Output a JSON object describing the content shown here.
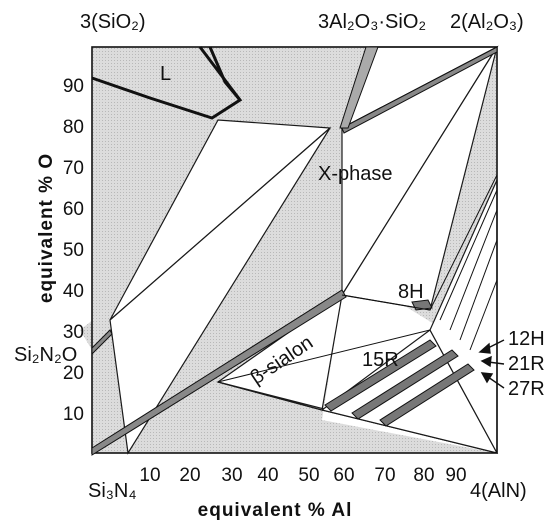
{
  "corners": {
    "top_left": "3(SiO₂)",
    "top_middle": "3Al₂O₃·SiO₂",
    "top_right": "2(Al₂O₃)",
    "bottom_left": "Si₃N₄",
    "bottom_right": "4(AlN)",
    "left_side": "Si₂N₂O"
  },
  "axes": {
    "x_title": "equivalent  %  Al",
    "y_title": "equivalent  %  O",
    "x_ticks": [
      "10",
      "20",
      "30",
      "40",
      "50",
      "60",
      "70",
      "80",
      "90"
    ],
    "y_ticks": [
      "90",
      "80",
      "70",
      "60",
      "50",
      "40",
      "30",
      "20",
      "10"
    ],
    "x_range": [
      0,
      100
    ],
    "y_range": [
      0,
      100
    ]
  },
  "phases": {
    "liquid": "L",
    "x_phase": "X-phase",
    "beta_sialon": "β-sialon",
    "p8h": "8H",
    "p12h": "12H",
    "p15r": "15R",
    "p21r": "21R",
    "p27r": "27R"
  },
  "colors": {
    "shaded_region": "#d6d6d6",
    "lines": "#1a1a1a",
    "background": "#ffffff"
  }
}
